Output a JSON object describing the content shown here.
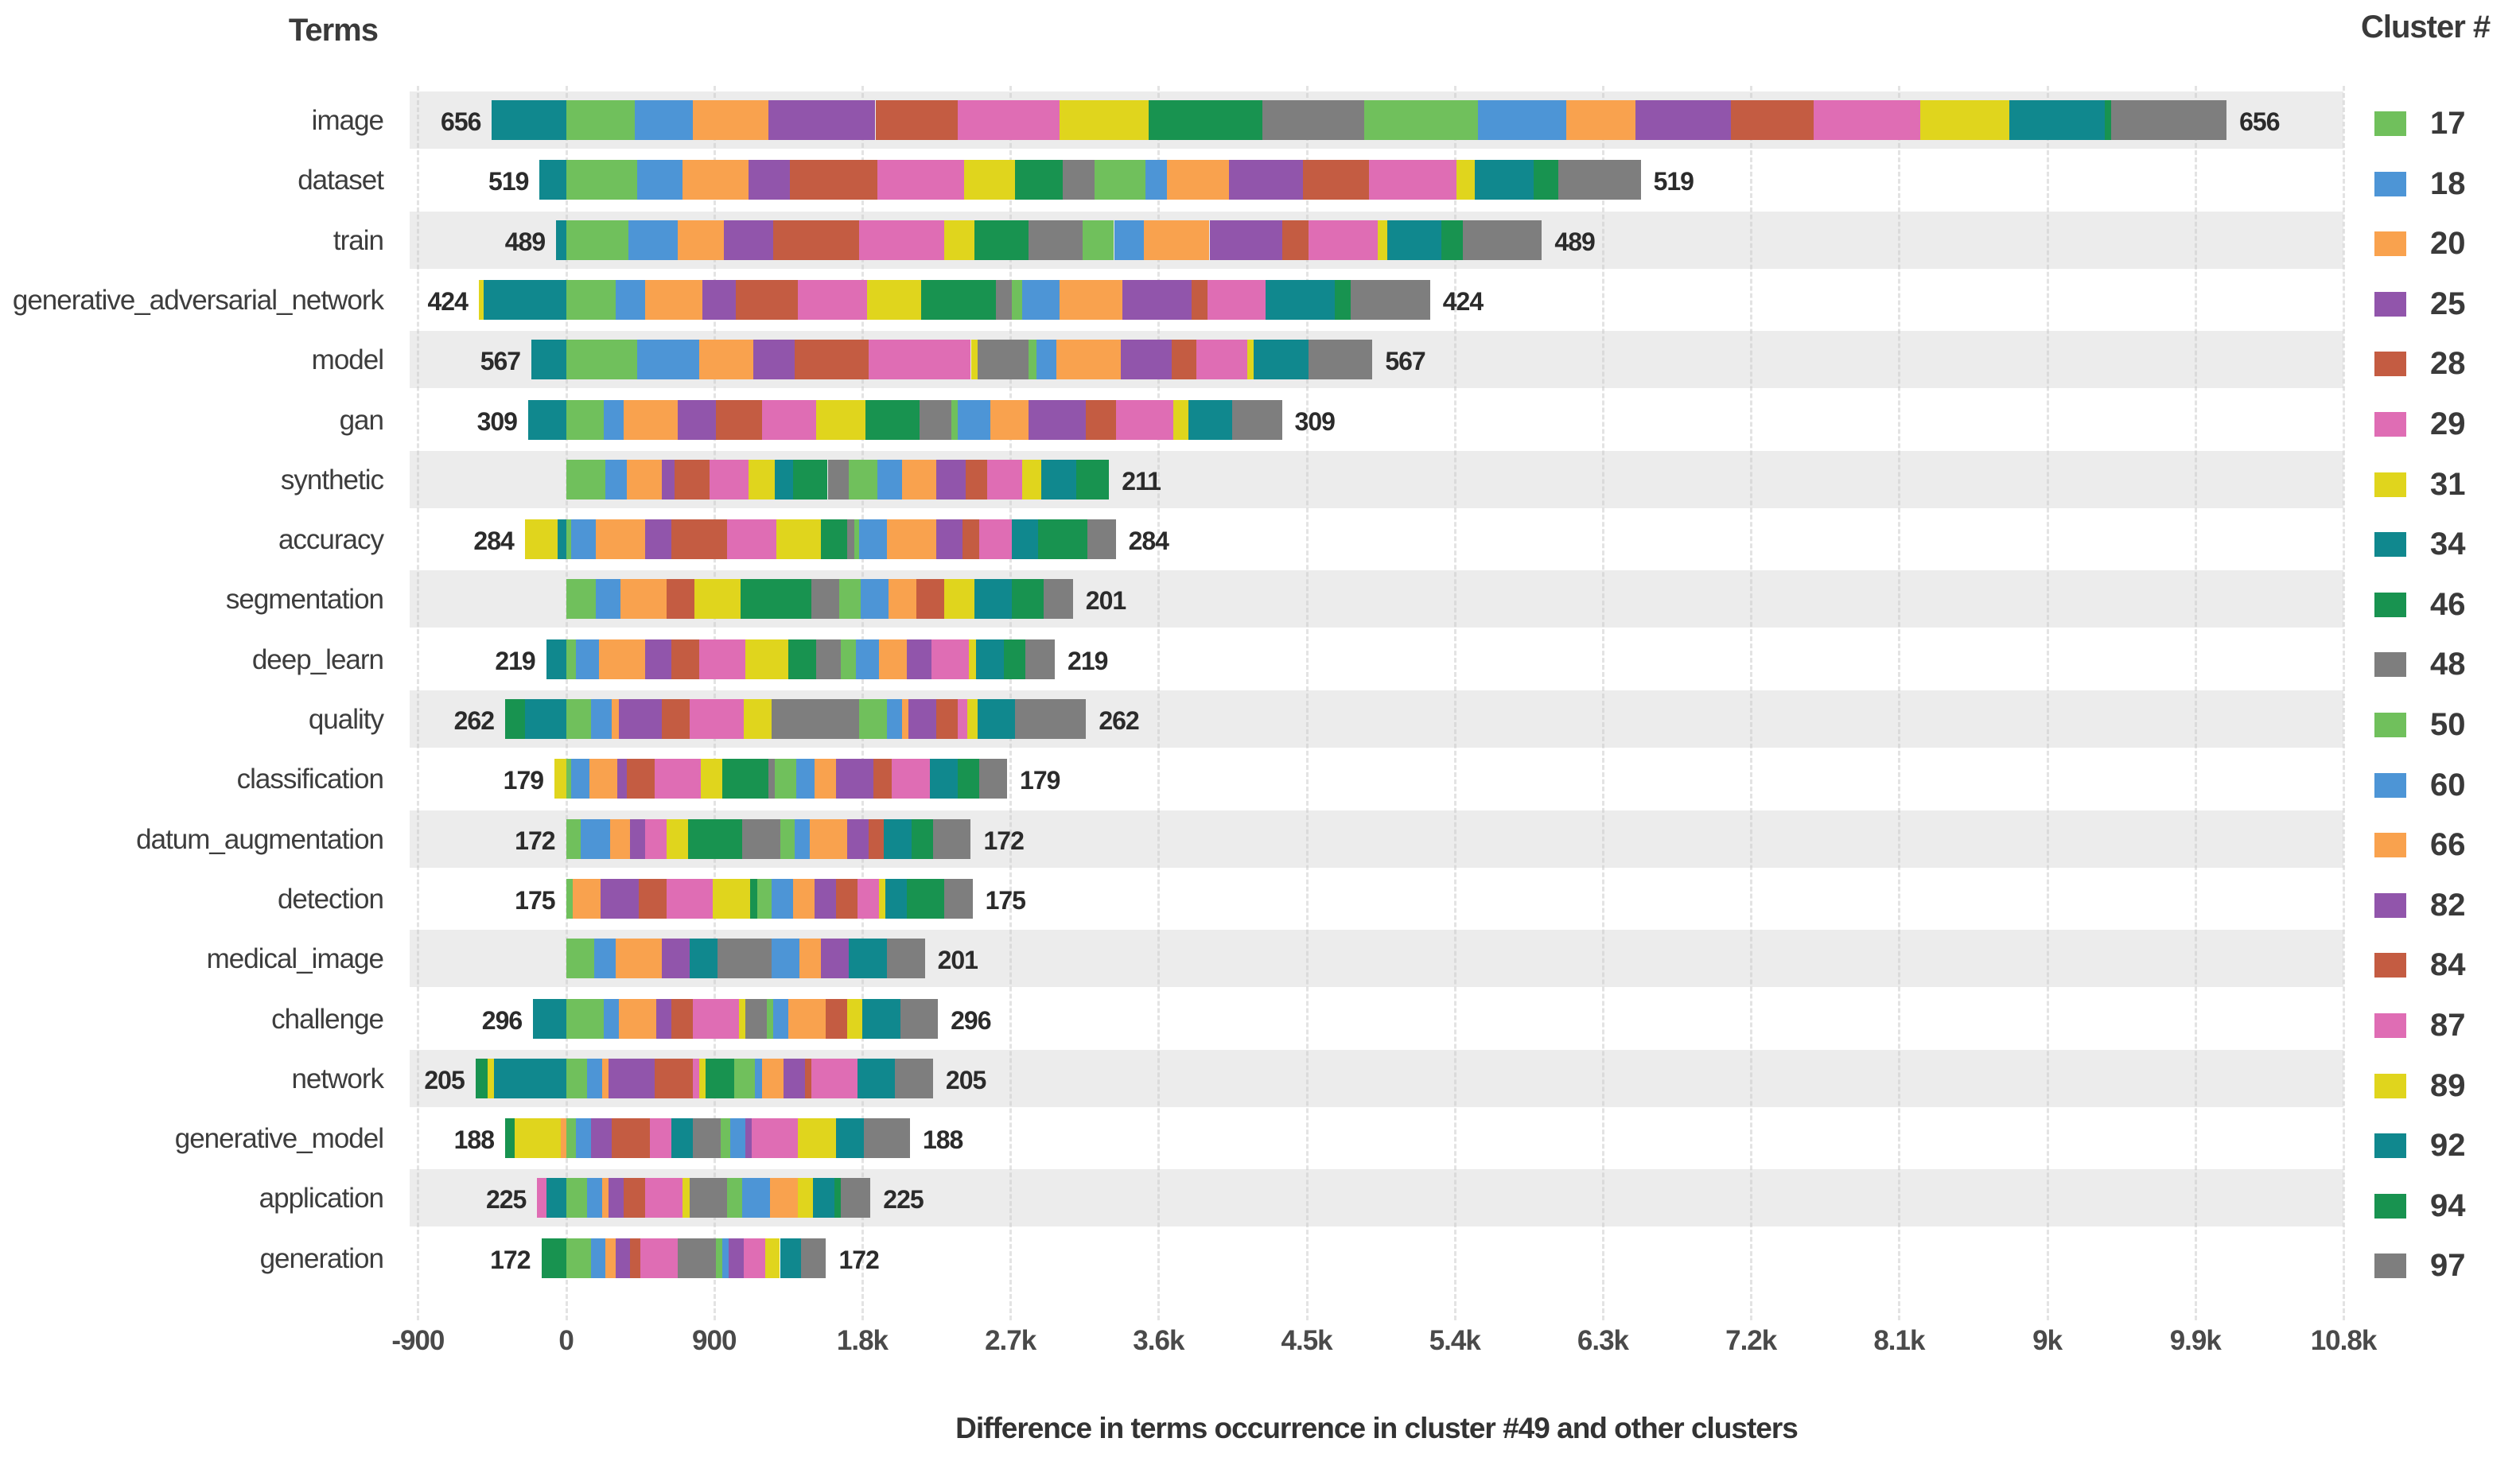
{
  "header": {
    "terms_title": "Terms",
    "legend_title": "Cluster #"
  },
  "axis": {
    "xlabel": "Difference in terms occurrence in cluster #49 and other clusters"
  },
  "chart_data": {
    "type": "bar",
    "orientation": "horizontal",
    "stacking": "relative",
    "grid": "vertical-dashed",
    "legend_position": "right",
    "xmin": -950,
    "xmax": 10800,
    "x_ticks": [
      {
        "value": -900,
        "label": "-900"
      },
      {
        "value": 0,
        "label": "0"
      },
      {
        "value": 900,
        "label": "900"
      },
      {
        "value": 1800,
        "label": "1.8k"
      },
      {
        "value": 2700,
        "label": "2.7k"
      },
      {
        "value": 3600,
        "label": "3.6k"
      },
      {
        "value": 4500,
        "label": "4.5k"
      },
      {
        "value": 5400,
        "label": "5.4k"
      },
      {
        "value": 6300,
        "label": "6.3k"
      },
      {
        "value": 7200,
        "label": "7.2k"
      },
      {
        "value": 8100,
        "label": "8.1k"
      },
      {
        "value": 9000,
        "label": "9k"
      },
      {
        "value": 9900,
        "label": "9.9k"
      },
      {
        "value": 10800,
        "label": "10.8k"
      }
    ],
    "clusters": [
      "17",
      "18",
      "20",
      "25",
      "28",
      "29",
      "31",
      "34",
      "46",
      "48",
      "50",
      "60",
      "66",
      "82",
      "84",
      "87",
      "89",
      "92",
      "94",
      "97"
    ],
    "cluster_colors": [
      "#70c05c",
      "#4d95d6",
      "#f9a24e",
      "#9155ab",
      "#c45c42",
      "#df6db4",
      "#e0d51d",
      "#10888e",
      "#189350",
      "#7e7e7e",
      "#70c05c",
      "#4d95d6",
      "#f9a24e",
      "#9155ab",
      "#c45c42",
      "#df6db4",
      "#e0d51d",
      "#10888e",
      "#189350",
      "#7e7e7e"
    ],
    "rows": [
      {
        "term": "image",
        "left_label": "656",
        "right_label": "656",
        "values": [
          420,
          350,
          460,
          650,
          500,
          620,
          540,
          -450,
          690,
          620,
          690,
          540,
          420,
          580,
          500,
          650,
          540,
          580,
          40,
          700
        ]
      },
      {
        "term": "dataset",
        "left_label": "519",
        "right_label": "519",
        "values": [
          430,
          280,
          400,
          250,
          530,
          530,
          310,
          -160,
          290,
          190,
          310,
          130,
          380,
          450,
          400,
          530,
          110,
          360,
          150,
          500
        ]
      },
      {
        "term": "train",
        "left_label": "489",
        "right_label": "489",
        "values": [
          380,
          300,
          280,
          300,
          520,
          520,
          180,
          -60,
          330,
          330,
          190,
          180,
          400,
          440,
          160,
          420,
          60,
          330,
          130,
          480
        ]
      },
      {
        "term": "generative_adversarial_network",
        "left_label": "424",
        "right_label": "424",
        "values": [
          300,
          180,
          350,
          200,
          380,
          420,
          330,
          -500,
          450,
          100,
          60,
          230,
          380,
          420,
          100,
          350,
          -30,
          420,
          100,
          480
        ]
      },
      {
        "term": "model",
        "left_label": "567",
        "right_label": "567",
        "values": [
          430,
          380,
          330,
          250,
          450,
          620,
          40,
          -210,
          0,
          310,
          50,
          120,
          390,
          310,
          150,
          310,
          40,
          330,
          0,
          390
        ]
      },
      {
        "term": "gan",
        "left_label": "309",
        "right_label": "309",
        "values": [
          230,
          120,
          330,
          230,
          280,
          330,
          300,
          -230,
          330,
          190,
          40,
          200,
          230,
          350,
          180,
          350,
          90,
          270,
          0,
          300
        ]
      },
      {
        "term": "synthetic",
        "left_label": null,
        "right_label": "211",
        "values": [
          240,
          130,
          210,
          80,
          210,
          240,
          160,
          110,
          210,
          130,
          170,
          150,
          210,
          180,
          130,
          210,
          120,
          210,
          200,
          0
        ]
      },
      {
        "term": "accuracy",
        "left_label": "284",
        "right_label": "284",
        "values": [
          30,
          150,
          300,
          160,
          340,
          300,
          270,
          -50,
          160,
          40,
          30,
          170,
          300,
          160,
          100,
          200,
          -200,
          160,
          300,
          170
        ]
      },
      {
        "term": "segmentation",
        "left_label": null,
        "right_label": "201",
        "values": [
          180,
          150,
          280,
          0,
          170,
          0,
          280,
          0,
          430,
          170,
          130,
          170,
          170,
          0,
          170,
          0,
          180,
          230,
          190,
          180
        ]
      },
      {
        "term": "deep_learn",
        "left_label": "219",
        "right_label": "219",
        "values": [
          60,
          140,
          280,
          160,
          170,
          280,
          260,
          -120,
          170,
          150,
          90,
          140,
          170,
          150,
          0,
          230,
          40,
          170,
          130,
          180
        ]
      },
      {
        "term": "quality",
        "left_label": "262",
        "right_label": "262",
        "values": [
          150,
          130,
          40,
          260,
          170,
          330,
          170,
          -250,
          -120,
          530,
          170,
          90,
          40,
          170,
          130,
          60,
          60,
          230,
          0,
          430
        ]
      },
      {
        "term": "classification",
        "left_label": "179",
        "right_label": "179",
        "values": [
          30,
          110,
          170,
          60,
          170,
          280,
          130,
          0,
          280,
          40,
          130,
          110,
          130,
          230,
          110,
          230,
          -70,
          170,
          130,
          170
        ]
      },
      {
        "term": "datum_augmentation",
        "left_label": "172",
        "right_label": "172",
        "values": [
          90,
          180,
          120,
          90,
          0,
          130,
          130,
          0,
          330,
          230,
          90,
          90,
          230,
          130,
          90,
          0,
          0,
          170,
          130,
          230
        ]
      },
      {
        "term": "detection",
        "left_label": "175",
        "right_label": "175",
        "values": [
          40,
          0,
          170,
          230,
          170,
          280,
          230,
          0,
          40,
          0,
          90,
          130,
          130,
          130,
          130,
          130,
          40,
          130,
          230,
          170
        ]
      },
      {
        "term": "medical_image",
        "left_label": null,
        "right_label": "201",
        "values": [
          170,
          130,
          280,
          170,
          0,
          0,
          0,
          170,
          0,
          330,
          0,
          170,
          130,
          170,
          0,
          0,
          0,
          230,
          0,
          230
        ]
      },
      {
        "term": "challenge",
        "left_label": "296",
        "right_label": "296",
        "values": [
          230,
          90,
          230,
          90,
          130,
          280,
          40,
          -200,
          0,
          130,
          40,
          90,
          230,
          0,
          130,
          0,
          90,
          230,
          0,
          230
        ]
      },
      {
        "term": "network",
        "left_label": "205",
        "right_label": "205",
        "values": [
          130,
          90,
          40,
          280,
          230,
          40,
          40,
          -440,
          170,
          0,
          130,
          40,
          130,
          130,
          40,
          280,
          -35,
          230,
          -75,
          230
        ]
      },
      {
        "term": "generative_model",
        "left_label": "188",
        "right_label": "188",
        "values": [
          60,
          90,
          -30,
          130,
          230,
          130,
          -280,
          130,
          -60,
          170,
          60,
          90,
          0,
          40,
          0,
          280,
          230,
          170,
          0,
          280
        ]
      },
      {
        "term": "application",
        "left_label": "225",
        "right_label": "225",
        "values": [
          130,
          90,
          40,
          90,
          130,
          230,
          40,
          -120,
          0,
          230,
          90,
          170,
          170,
          0,
          0,
          -55,
          90,
          130,
          40,
          180
        ]
      },
      {
        "term": "generation",
        "left_label": "172",
        "right_label": "172",
        "values": [
          150,
          90,
          60,
          90,
          60,
          230,
          0,
          0,
          -150,
          230,
          40,
          40,
          0,
          90,
          0,
          130,
          90,
          130,
          0,
          150
        ]
      }
    ]
  }
}
